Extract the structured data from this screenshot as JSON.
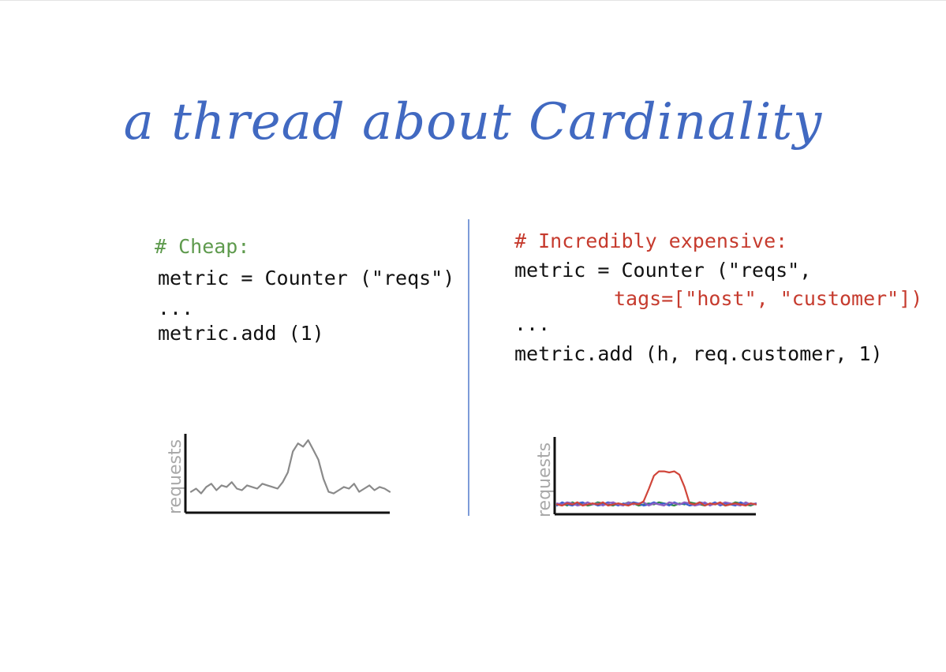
{
  "title": "a thread about Cardinality",
  "left": {
    "comment": "# Cheap:",
    "line1": "metric = Counter (\"reqs\")",
    "ellipsis": "...",
    "line3": "metric.add (1)"
  },
  "right": {
    "comment": "# Incredibly expensive:",
    "line1": "metric = Counter (\"reqs\",",
    "line2": "tags=[\"host\", \"customer\"])",
    "ellipsis": "...",
    "line4": "metric.add (h, req.customer, 1)"
  },
  "chart_data": [
    {
      "type": "line",
      "ylabel": "requests",
      "series": [
        {
          "color": "#8a8a8a",
          "values": [
            10,
            12,
            9,
            13,
            15,
            11,
            14,
            13,
            16,
            12,
            11,
            14,
            13,
            12,
            15,
            14,
            13,
            12,
            16,
            22,
            35,
            40,
            38,
            42,
            36,
            30,
            18,
            10,
            9,
            11,
            13,
            12,
            15,
            10,
            12,
            14,
            11,
            13,
            12,
            10
          ]
        }
      ]
    },
    {
      "type": "line",
      "ylabel": "requests",
      "series": [
        {
          "color": "#2f8a45",
          "values": [
            6,
            7,
            5,
            8,
            6,
            7,
            5,
            6,
            8,
            7,
            6,
            5,
            7,
            6,
            8,
            7,
            5,
            6,
            7,
            6,
            8,
            7,
            6,
            5,
            7,
            6,
            8,
            7,
            6,
            5,
            7,
            6,
            7,
            5,
            6,
            8,
            7,
            6,
            5,
            7
          ]
        },
        {
          "color": "#3b5fd0",
          "values": [
            5,
            8,
            6,
            5,
            7,
            8,
            6,
            7,
            5,
            6,
            8,
            7,
            5,
            7,
            6,
            8,
            7,
            5,
            6,
            8,
            6,
            7,
            5,
            8,
            6,
            7,
            5,
            6,
            8,
            7,
            6,
            8,
            5,
            7,
            6,
            5,
            8,
            6,
            7,
            6
          ]
        },
        {
          "color": "#8c5fc0",
          "values": [
            7,
            6,
            8,
            7,
            5,
            6,
            8,
            6,
            7,
            5,
            7,
            8,
            6,
            5,
            8,
            6,
            7,
            8,
            5,
            7,
            6,
            5,
            8,
            7,
            6,
            8,
            7,
            5,
            6,
            8,
            5,
            7,
            6,
            8,
            7,
            6,
            5,
            8,
            6,
            7
          ]
        },
        {
          "color": "#d0453a",
          "values": [
            6,
            5,
            7,
            6,
            8,
            5,
            6,
            7,
            6,
            8,
            5,
            6,
            7,
            6,
            5,
            7,
            6,
            9,
            20,
            32,
            36,
            36,
            35,
            36,
            33,
            22,
            7,
            6,
            8,
            5,
            7,
            6,
            8,
            5,
            6,
            7,
            6,
            5,
            7,
            6
          ]
        }
      ]
    }
  ]
}
